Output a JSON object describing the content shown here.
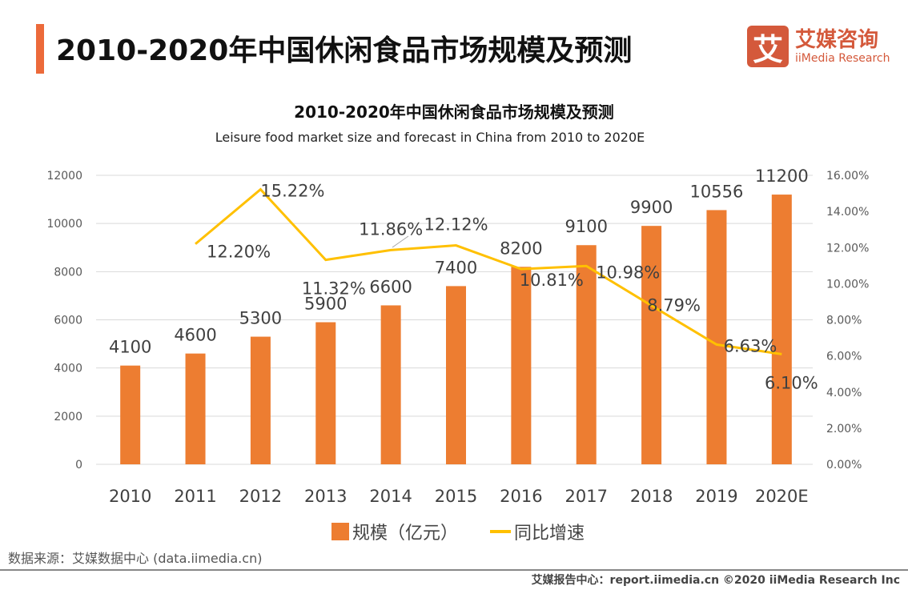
{
  "header": {
    "title": "2010-2020年中国休闲食品市场规模及预测"
  },
  "logo": {
    "mark": "艾",
    "cn": "艾媒咨询",
    "en": "iiMedia Research"
  },
  "chart_data": {
    "type": "bar+line",
    "title": "2010-2020年中国休闲食品市场规模及预测",
    "subtitle": "Leisure food market size and forecast in China from 2010 to 2020E",
    "categories": [
      "2010",
      "2011",
      "2012",
      "2013",
      "2014",
      "2015",
      "2016",
      "2017",
      "2018",
      "2019",
      "2020E"
    ],
    "series": [
      {
        "name": "规模（亿元）",
        "type": "bar",
        "axis": "left",
        "color": "#ed7d31",
        "values": [
          4100,
          4600,
          5300,
          5900,
          6600,
          7400,
          8200,
          9100,
          9900,
          10556,
          11200
        ]
      },
      {
        "name": "同比增速",
        "type": "line",
        "axis": "right",
        "color": "#ffc000",
        "values": [
          null,
          12.2,
          15.22,
          11.32,
          11.86,
          12.12,
          10.81,
          10.98,
          8.79,
          6.63,
          6.1
        ]
      }
    ],
    "left_axis": {
      "ylim": [
        0,
        12000
      ],
      "ticks": [
        "0",
        "2000",
        "4000",
        "6000",
        "8000",
        "10000",
        "12000"
      ]
    },
    "right_axis": {
      "ylim": [
        0,
        16
      ],
      "ticks": [
        "0.00%",
        "2.00%",
        "4.00%",
        "6.00%",
        "8.00%",
        "10.00%",
        "12.00%",
        "14.00%",
        "16.00%"
      ]
    },
    "grid": true,
    "legend": "bottom"
  },
  "source": "数据来源：艾媒数据中心 (data.iimedia.cn)",
  "footer": "艾媒报告中心：report.iimedia.cn   ©2020  iiMedia Research  Inc"
}
